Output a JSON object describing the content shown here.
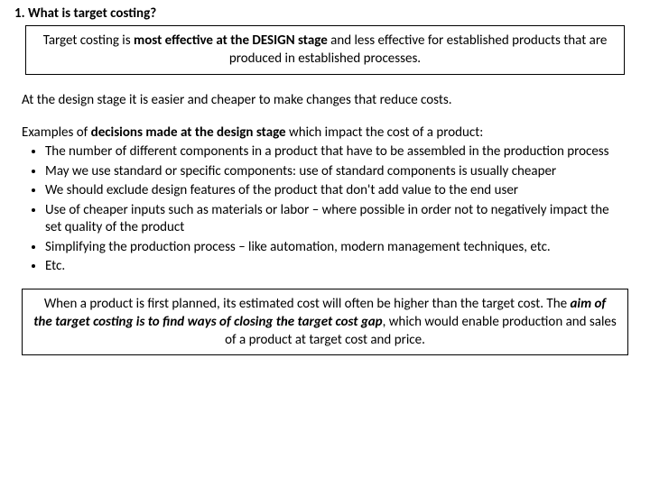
{
  "heading": "1. What is target costing?",
  "box1": {
    "pre": "Target costing is ",
    "bold": "most effective at the DESIGN stage",
    "post": " and less effective for established products that are produced in established processes."
  },
  "para1": "At the design stage it is easier and cheaper to make changes that reduce costs.",
  "para2": {
    "pre": "Examples of ",
    "bold": "decisions made at the design stage",
    "post": " which impact the cost of a product:"
  },
  "bullets": [
    "The number of different components in a product that have to be assembled in the production process",
    "May we use standard or specific components: use of standard components is usually cheaper",
    "We should exclude design features of the product that don't add value to the end user",
    "Use of cheaper inputs such as materials or labor – where possible in order not to negatively impact the set quality of the product",
    "Simplifying the production process – like automation, modern management techniques, etc.",
    "Etc."
  ],
  "box2": {
    "pre": "When a product is first planned, its estimated cost will often be higher than the target cost. The ",
    "bolditalic": "aim of the target costing is to find ways of closing the target cost gap",
    "post": ", which would enable production and sales of a product at target cost and price."
  }
}
